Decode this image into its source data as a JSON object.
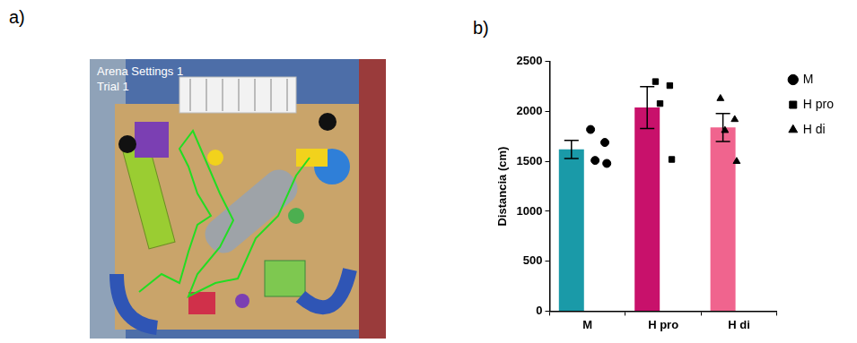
{
  "panel_a": {
    "letter": "a)",
    "overlay": [
      "Arena Settings 1",
      "Trial   1"
    ]
  },
  "panel_b": {
    "letter": "b)"
  },
  "chart_data": {
    "type": "bar",
    "y_label": "Distancia (cm)",
    "categories": [
      "M",
      "H pro",
      "H di"
    ],
    "values": [
      1620,
      2040,
      1840
    ],
    "errors": [
      90,
      210,
      140
    ],
    "colors": [
      "#1a9aa8",
      "#c8116b",
      "#f0648e"
    ],
    "points": [
      {
        "marker": "circle",
        "color": "#000000",
        "values": [
          1820,
          1690,
          1510,
          1480
        ]
      },
      {
        "marker": "square",
        "color": "#000000",
        "values": [
          2300,
          2260,
          2080,
          1520
        ]
      },
      {
        "marker": "triangle",
        "color": "#000000",
        "values": [
          2130,
          1920,
          1810,
          1500
        ]
      }
    ],
    "ylim": [
      0,
      2500
    ],
    "yticks": [
      0,
      500,
      1000,
      1500,
      2000,
      2500
    ],
    "grid": false,
    "legend": "right"
  }
}
